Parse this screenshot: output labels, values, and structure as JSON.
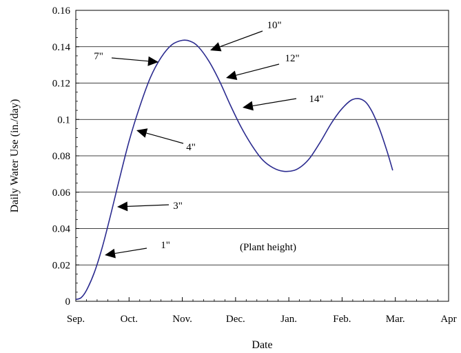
{
  "chart_data": {
    "type": "line",
    "title": "",
    "xlabel": "Date",
    "ylabel": "Daily Water Use (in./day)",
    "x_ticks": [
      "Sep.",
      "Oct.",
      "Nov.",
      "Dec.",
      "Jan.",
      "Feb.",
      "Mar.",
      "Apr"
    ],
    "y_ticks": [
      "0",
      "0.02",
      "0.04",
      "0.06",
      "0.08",
      "0.1",
      "0.12",
      "0.14",
      "0.16"
    ],
    "xlim": [
      0,
      7
    ],
    "ylim": [
      0,
      0.16
    ],
    "grid": "horizontal",
    "line_color": "#2b2b8f",
    "series": [
      {
        "name": "",
        "x": [
          0.0,
          0.1,
          0.2,
          0.35,
          0.5,
          0.65,
          0.8,
          1.0,
          1.2,
          1.4,
          1.6,
          1.8,
          2.0,
          2.15,
          2.3,
          2.5,
          2.7,
          2.9,
          3.1,
          3.3,
          3.5,
          3.7,
          3.9,
          4.1,
          4.25,
          4.4,
          4.6,
          4.8,
          5.0,
          5.2,
          5.4,
          5.55,
          5.7,
          5.85,
          5.95
        ],
        "y": [
          0.001,
          0.002,
          0.006,
          0.016,
          0.03,
          0.047,
          0.065,
          0.088,
          0.107,
          0.123,
          0.134,
          0.141,
          0.1435,
          0.143,
          0.14,
          0.132,
          0.121,
          0.108,
          0.096,
          0.086,
          0.078,
          0.0735,
          0.0715,
          0.072,
          0.0745,
          0.079,
          0.088,
          0.098,
          0.106,
          0.111,
          0.1105,
          0.105,
          0.095,
          0.082,
          0.072
        ]
      }
    ],
    "annotations": [
      {
        "text": "1\"",
        "x": 0.55,
        "y": 0.025
      },
      {
        "text": "3\"",
        "x": 0.8,
        "y": 0.052
      },
      {
        "text": "4\"",
        "x": 1.15,
        "y": 0.094
      },
      {
        "text": "7\"",
        "x": 1.5,
        "y": 0.132
      },
      {
        "text": "10\"",
        "x": 2.55,
        "y": 0.138
      },
      {
        "text": "12\"",
        "x": 2.85,
        "y": 0.124
      },
      {
        "text": "14\"",
        "x": 3.15,
        "y": 0.107
      },
      {
        "text": "(Plant height)"
      }
    ]
  }
}
